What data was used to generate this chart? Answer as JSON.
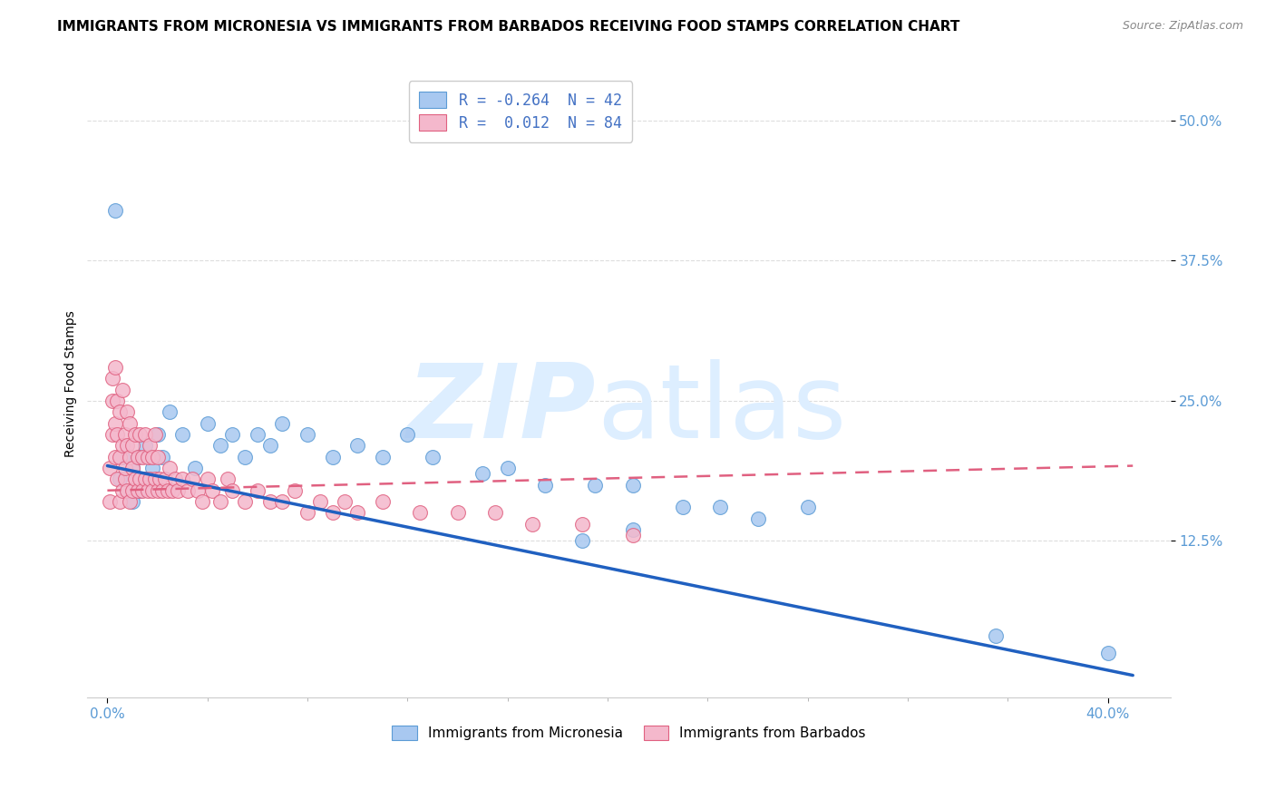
{
  "title": "IMMIGRANTS FROM MICRONESIA VS IMMIGRANTS FROM BARBADOS RECEIVING FOOD STAMPS CORRELATION CHART",
  "source": "Source: ZipAtlas.com",
  "ylabel": "Receiving Food Stamps",
  "ytick_labels": [
    "12.5%",
    "25.0%",
    "37.5%",
    "50.0%"
  ],
  "ytick_values": [
    0.125,
    0.25,
    0.375,
    0.5
  ],
  "xtick_labels": [
    "0.0%",
    "40.0%"
  ],
  "xtick_values": [
    0.0,
    0.4
  ],
  "xlim": [
    -0.008,
    0.425
  ],
  "ylim": [
    -0.015,
    0.545
  ],
  "micronesia_color": "#a8c8f0",
  "micronesia_edge": "#5b9bd5",
  "barbados_color": "#f4b8cc",
  "barbados_edge": "#e06080",
  "micronesia_x": [
    0.003,
    0.005,
    0.006,
    0.008,
    0.01,
    0.01,
    0.012,
    0.013,
    0.015,
    0.015,
    0.018,
    0.02,
    0.022,
    0.025,
    0.03,
    0.035,
    0.04,
    0.045,
    0.05,
    0.055,
    0.06,
    0.065,
    0.07,
    0.08,
    0.09,
    0.1,
    0.11,
    0.12,
    0.13,
    0.15,
    0.16,
    0.175,
    0.195,
    0.21,
    0.23,
    0.245,
    0.26,
    0.28,
    0.21,
    0.19,
    0.355,
    0.4
  ],
  "micronesia_y": [
    0.42,
    0.18,
    0.2,
    0.17,
    0.19,
    0.16,
    0.2,
    0.17,
    0.21,
    0.18,
    0.19,
    0.22,
    0.2,
    0.24,
    0.22,
    0.19,
    0.23,
    0.21,
    0.22,
    0.2,
    0.22,
    0.21,
    0.23,
    0.22,
    0.2,
    0.21,
    0.2,
    0.22,
    0.2,
    0.185,
    0.19,
    0.175,
    0.175,
    0.175,
    0.155,
    0.155,
    0.145,
    0.155,
    0.135,
    0.125,
    0.04,
    0.025
  ],
  "barbados_x": [
    0.001,
    0.001,
    0.002,
    0.002,
    0.002,
    0.003,
    0.003,
    0.003,
    0.004,
    0.004,
    0.004,
    0.005,
    0.005,
    0.005,
    0.006,
    0.006,
    0.006,
    0.007,
    0.007,
    0.007,
    0.008,
    0.008,
    0.008,
    0.009,
    0.009,
    0.009,
    0.01,
    0.01,
    0.01,
    0.011,
    0.011,
    0.012,
    0.012,
    0.013,
    0.013,
    0.014,
    0.014,
    0.015,
    0.015,
    0.016,
    0.016,
    0.017,
    0.017,
    0.018,
    0.018,
    0.019,
    0.019,
    0.02,
    0.02,
    0.021,
    0.022,
    0.023,
    0.024,
    0.025,
    0.026,
    0.027,
    0.028,
    0.03,
    0.032,
    0.034,
    0.036,
    0.038,
    0.04,
    0.042,
    0.045,
    0.048,
    0.05,
    0.055,
    0.06,
    0.065,
    0.07,
    0.075,
    0.08,
    0.085,
    0.09,
    0.095,
    0.1,
    0.11,
    0.125,
    0.14,
    0.155,
    0.17,
    0.19,
    0.21
  ],
  "barbados_y": [
    0.16,
    0.19,
    0.22,
    0.25,
    0.27,
    0.2,
    0.23,
    0.28,
    0.18,
    0.22,
    0.25,
    0.16,
    0.2,
    0.24,
    0.17,
    0.21,
    0.26,
    0.18,
    0.22,
    0.19,
    0.17,
    0.21,
    0.24,
    0.16,
    0.2,
    0.23,
    0.17,
    0.21,
    0.19,
    0.18,
    0.22,
    0.17,
    0.2,
    0.18,
    0.22,
    0.17,
    0.2,
    0.18,
    0.22,
    0.17,
    0.2,
    0.18,
    0.21,
    0.17,
    0.2,
    0.18,
    0.22,
    0.17,
    0.2,
    0.18,
    0.17,
    0.18,
    0.17,
    0.19,
    0.17,
    0.18,
    0.17,
    0.18,
    0.17,
    0.18,
    0.17,
    0.16,
    0.18,
    0.17,
    0.16,
    0.18,
    0.17,
    0.16,
    0.17,
    0.16,
    0.16,
    0.17,
    0.15,
    0.16,
    0.15,
    0.16,
    0.15,
    0.16,
    0.15,
    0.15,
    0.15,
    0.14,
    0.14,
    0.13
  ],
  "mic_trend_x": [
    0.0,
    0.41
  ],
  "mic_trend_y": [
    0.192,
    0.005
  ],
  "bar_trend_x": [
    0.0,
    0.41
  ],
  "bar_trend_y": [
    0.17,
    0.192
  ],
  "mic_trend_color": "#2060c0",
  "bar_trend_color": "#e06080",
  "watermark_zip": "ZIP",
  "watermark_atlas": "atlas",
  "watermark_color": "#ddeeff",
  "background_color": "#ffffff",
  "grid_color": "#dddddd",
  "title_fontsize": 11,
  "source_fontsize": 9,
  "axis_label_fontsize": 10,
  "tick_fontsize": 11,
  "legend_top": [
    {
      "patch_color": "#a8c8f0",
      "patch_edge": "#5b9bd5",
      "r_text": "R = -0.264",
      "n_text": "N = 42"
    },
    {
      "patch_color": "#f4b8cc",
      "patch_edge": "#e06080",
      "r_text": "R =  0.012",
      "n_text": "N = 84"
    }
  ],
  "legend_bottom": [
    "Immigrants from Micronesia",
    "Immigrants from Barbados"
  ]
}
